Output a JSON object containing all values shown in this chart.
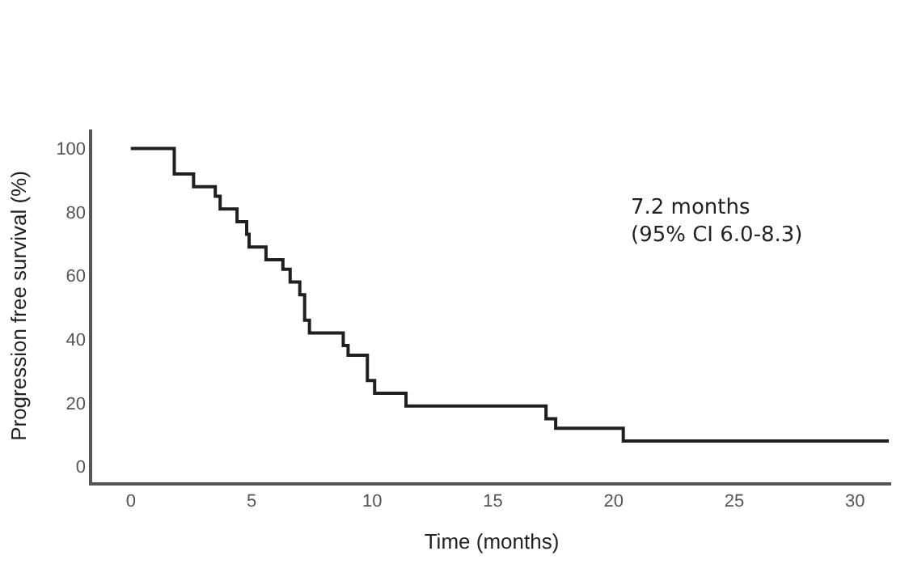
{
  "chart_data": {
    "type": "step",
    "xlabel": "Time (months)",
    "ylabel": "Progression free survival (%)",
    "x": [
      0,
      1.8,
      2.6,
      3.5,
      3.7,
      4.4,
      4.8,
      4.9,
      5.6,
      6.3,
      6.6,
      7.0,
      7.2,
      7.4,
      8.8,
      9.0,
      9.8,
      10.1,
      11.4,
      17.2,
      17.6,
      20.4,
      31.4
    ],
    "series": [
      {
        "color": "#1f1f1f",
        "values": [
          100,
          92,
          88,
          85,
          81,
          77,
          73,
          69,
          65,
          62,
          58,
          54,
          46,
          42,
          38,
          35,
          27,
          23,
          19,
          15,
          12,
          8,
          8
        ]
      }
    ],
    "xlim": [
      -1.6,
      31.5
    ],
    "ylim": [
      -5,
      106
    ],
    "xticks": [
      0,
      5,
      10,
      15,
      20,
      25,
      30
    ],
    "yticks": [
      0,
      20,
      40,
      60,
      80,
      100
    ],
    "marker": "none",
    "line_style": "solid",
    "annotations": [
      "7.2 months\n(95% CI 6.0-8.3)"
    ]
  }
}
